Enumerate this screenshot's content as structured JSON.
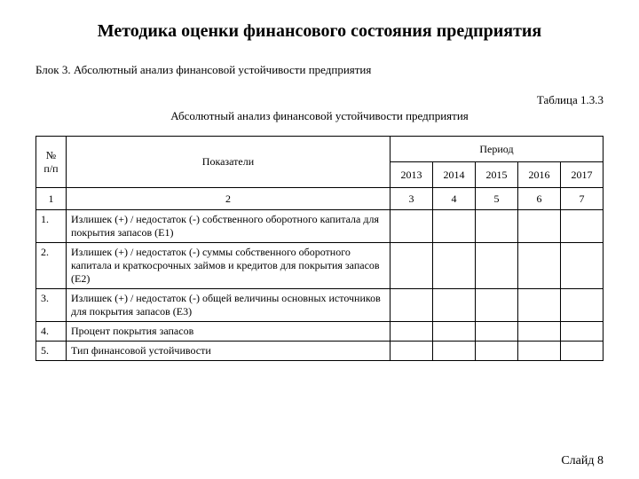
{
  "title": "Методика оценки финансового состояния предприятия",
  "block_label": "Блок 3. Абсолютный анализ финансовой устойчивости предприятия",
  "table_number": "Таблица 1.3.3",
  "table_caption": "Абсолютный анализ финансовой устойчивости предприятия",
  "table": {
    "header": {
      "num": "№ п/п",
      "indicators": "Показатели",
      "period": "Период",
      "years": [
        "2013",
        "2014",
        "2015",
        "2016",
        "2017"
      ]
    },
    "colnums": [
      "1",
      "2",
      "3",
      "4",
      "5",
      "6",
      "7"
    ],
    "rows": [
      {
        "n": "1.",
        "ind": "Излишек (+) / недостаток (-) собственного оборотного капитала для покрытия запасов (Е1)",
        "vals": [
          "",
          "",
          "",
          "",
          ""
        ]
      },
      {
        "n": "2.",
        "ind": "Излишек (+) / недостаток (-) суммы собственного оборотного капитала и краткосрочных займов и кредитов для покрытия запасов (Е2)",
        "vals": [
          "",
          "",
          "",
          "",
          ""
        ]
      },
      {
        "n": "3.",
        "ind": "Излишек (+) / недостаток (-) общей величины основных источников для покрытия запасов (Е3)",
        "vals": [
          "",
          "",
          "",
          "",
          ""
        ]
      },
      {
        "n": "4.",
        "ind": "Процент покрытия запасов",
        "vals": [
          "",
          "",
          "",
          "",
          ""
        ]
      },
      {
        "n": "5.",
        "ind": "Тип финансовой устойчивости",
        "vals": [
          "",
          "",
          "",
          "",
          ""
        ]
      }
    ]
  },
  "footer": "Слайд 8"
}
